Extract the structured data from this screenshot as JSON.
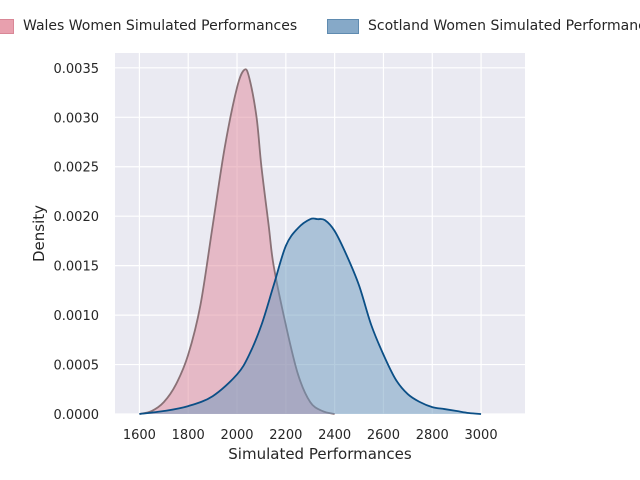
{
  "chart_data": {
    "type": "area",
    "xlabel": "Simulated Performances",
    "ylabel": "Density",
    "xlim": [
      1500,
      3180
    ],
    "ylim": [
      0,
      0.00365
    ],
    "xticks": [
      1600,
      1800,
      2000,
      2200,
      2400,
      2600,
      2800,
      3000
    ],
    "yticks": [
      0,
      0.0005,
      0.001,
      0.0015,
      0.002,
      0.0025,
      0.003,
      0.0035
    ],
    "ytick_labels": [
      "0.0000",
      "0.0005",
      "0.0010",
      "0.0015",
      "0.0020",
      "0.0025",
      "0.0030",
      "0.0035"
    ],
    "grid": true,
    "legend_position": "top",
    "series": [
      {
        "name": "Wales Women Simulated Performances",
        "fill": "#e0879a",
        "line": "#8a7176",
        "x": [
          1600,
          1650,
          1700,
          1750,
          1800,
          1850,
          1900,
          1950,
          2000,
          2030,
          2050,
          2080,
          2100,
          2130,
          2150,
          2200,
          2250,
          2300,
          2350,
          2400
        ],
        "y": [
          0.0,
          3e-05,
          0.00012,
          0.0003,
          0.0006,
          0.0011,
          0.0019,
          0.0027,
          0.0033,
          0.00348,
          0.0034,
          0.003,
          0.0025,
          0.0019,
          0.0015,
          0.0009,
          0.0004,
          0.00012,
          3e-05,
          0.0
        ]
      },
      {
        "name": "Scotland Women Simulated Performances",
        "fill": "#6c99bd",
        "line": "#0b4f86",
        "x": [
          1600,
          1700,
          1800,
          1900,
          2000,
          2050,
          2100,
          2150,
          2200,
          2250,
          2300,
          2330,
          2360,
          2400,
          2450,
          2500,
          2550,
          2600,
          2650,
          2700,
          2750,
          2800,
          2850,
          2900,
          2950,
          3000
        ],
        "y": [
          0.0,
          3e-05,
          8e-05,
          0.00018,
          0.0004,
          0.0006,
          0.0009,
          0.0013,
          0.0017,
          0.00188,
          0.00197,
          0.00197,
          0.00196,
          0.00185,
          0.0016,
          0.0013,
          0.0009,
          0.0006,
          0.00035,
          0.0002,
          0.00012,
          7e-05,
          5e-05,
          3e-05,
          1e-05,
          0.0
        ]
      }
    ]
  }
}
